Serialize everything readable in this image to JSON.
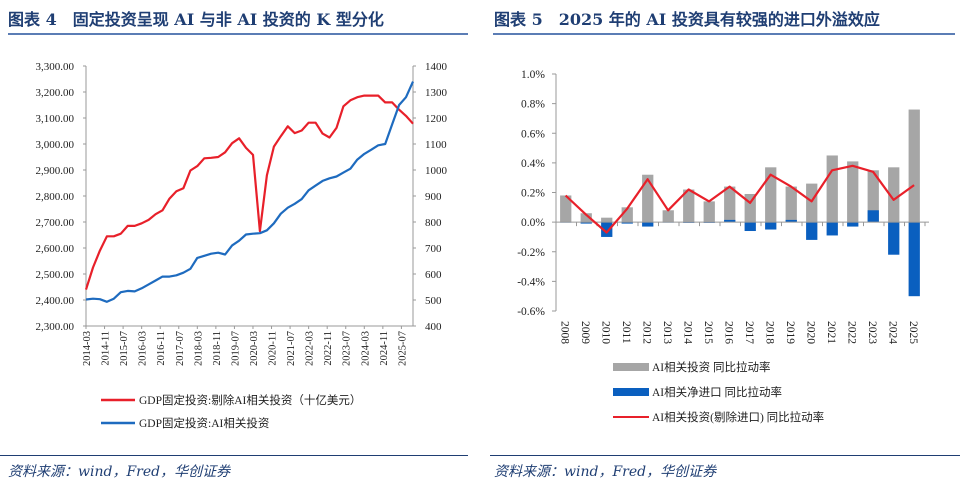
{
  "left": {
    "title": "图表 4　固定投资呈现 AI 与非 AI 投资的 K 型分化",
    "source": "资料来源：wind，Fred，华创证券"
  },
  "right": {
    "title": "图表 5　2025 年的 AI 投资具有较强的进口外溢效应",
    "source": "资料来源：wind，Fred，华创证券"
  },
  "chart_data": [
    {
      "type": "line",
      "x_tick_labels": [
        "2014-03",
        "2014-11",
        "2015-07",
        "2016-03",
        "2016-11",
        "2017-07",
        "2018-03",
        "2018-11",
        "2019-07",
        "2020-03",
        "2020-11",
        "2021-07",
        "2022-03",
        "2022-11",
        "2023-07",
        "2024-03",
        "2024-11",
        "2025-07"
      ],
      "ylim_left": [
        2300,
        3300
      ],
      "ylim_right": [
        400,
        1400
      ],
      "y_left_ticks": [
        "2,300.00",
        "2,400.00",
        "2,500.00",
        "2,600.00",
        "2,700.00",
        "2,800.00",
        "2,900.00",
        "3,000.00",
        "3,100.00",
        "3,200.00",
        "3,300.00"
      ],
      "y_right_ticks": [
        "400",
        "500",
        "600",
        "700",
        "800",
        "900",
        "1000",
        "1100",
        "1200",
        "1300",
        "1400"
      ],
      "frequency": "quarterly",
      "legend_position": "bottom",
      "grid": false,
      "series": [
        {
          "name": "GDP固定投资:剔除AI相关投资（十亿美元）",
          "axis": "left",
          "color": "#e8202a",
          "values": [
            2440,
            2525,
            2590,
            2645,
            2645,
            2655,
            2685,
            2685,
            2695,
            2708,
            2730,
            2745,
            2790,
            2818,
            2830,
            2898,
            2915,
            2945,
            2947,
            2950,
            2968,
            3003,
            3022,
            2985,
            2958,
            2665,
            2880,
            2990,
            3030,
            3068,
            3042,
            3052,
            3082,
            3082,
            3040,
            3025,
            3062,
            3145,
            3168,
            3180,
            3186,
            3186,
            3186,
            3160,
            3160,
            3132,
            3108,
            3078
          ]
        },
        {
          "name": "GDP固定投资:AI相关投资",
          "axis": "right",
          "color": "#1e6bbf",
          "values": [
            502,
            505,
            503,
            493,
            505,
            530,
            535,
            533,
            545,
            560,
            575,
            590,
            590,
            595,
            605,
            620,
            662,
            670,
            678,
            682,
            675,
            710,
            728,
            752,
            755,
            757,
            768,
            795,
            832,
            855,
            870,
            888,
            922,
            940,
            958,
            968,
            975,
            990,
            1005,
            1040,
            1062,
            1078,
            1095,
            1100,
            1175,
            1250,
            1280,
            1340
          ]
        }
      ]
    },
    {
      "type": "bar",
      "categories": [
        "2008",
        "2009",
        "2010",
        "2011",
        "2012",
        "2013",
        "2014",
        "2015",
        "2016",
        "2017",
        "2018",
        "2019",
        "2020",
        "2021",
        "2022",
        "2023",
        "2024",
        "2025"
      ],
      "ylim": [
        -0.6,
        1.0
      ],
      "y_ticks": [
        "-0.6%",
        "-0.4%",
        "-0.2%",
        "0.0%",
        "0.2%",
        "0.4%",
        "0.6%",
        "0.8%",
        "1.0%"
      ],
      "unit": "%",
      "legend_position": "bottom",
      "grid": false,
      "series": [
        {
          "name": "AI相关投资 同比拉动率",
          "kind": "bar",
          "color": "#a6a6a6",
          "values": [
            0.18,
            0.06,
            0.03,
            0.1,
            0.32,
            0.08,
            0.22,
            0.14,
            0.24,
            0.19,
            0.37,
            0.24,
            0.26,
            0.45,
            0.41,
            0.35,
            0.37,
            0.76
          ]
        },
        {
          "name": "AI相关净进口  同比拉动率",
          "kind": "bar",
          "color": "#0a5fbf",
          "values": [
            0,
            -0.01,
            -0.1,
            -0.01,
            -0.03,
            0,
            -0.005,
            -0.005,
            0.015,
            -0.06,
            -0.05,
            0.015,
            -0.12,
            -0.09,
            -0.03,
            0.08,
            -0.22,
            -0.5
          ]
        },
        {
          "name": "AI相关投资(剔除进口) 同比拉动率",
          "kind": "line",
          "color": "#e8202a",
          "values": [
            0.18,
            0.05,
            -0.07,
            0.09,
            0.29,
            0.08,
            0.22,
            0.14,
            0.24,
            0.13,
            0.32,
            0.24,
            0.14,
            0.35,
            0.38,
            0.34,
            0.15,
            0.25
          ]
        }
      ]
    }
  ]
}
